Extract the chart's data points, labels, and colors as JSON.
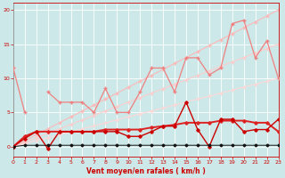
{
  "x": [
    0,
    1,
    2,
    3,
    4,
    5,
    6,
    7,
    8,
    9,
    10,
    11,
    12,
    13,
    14,
    15,
    16,
    17,
    18,
    19,
    20,
    21,
    22,
    23
  ],
  "line_pink_jagged": [
    11.5,
    5.0,
    null,
    8.0,
    6.5,
    6.5,
    6.5,
    5.0,
    8.5,
    5.0,
    5.0,
    8.0,
    11.5,
    11.5,
    8.0,
    13.0,
    13.0,
    10.5,
    11.5,
    18.0,
    18.5,
    13.0,
    15.5,
    10.0
  ],
  "line_pale_upper": [
    0.0,
    0.87,
    1.74,
    2.61,
    3.48,
    4.35,
    5.22,
    6.09,
    6.96,
    7.83,
    8.7,
    9.57,
    10.43,
    11.3,
    12.17,
    13.04,
    13.91,
    14.78,
    15.65,
    16.52,
    17.39,
    18.26,
    19.13,
    20.0
  ],
  "line_pale_lower": [
    0.0,
    0.65,
    1.3,
    1.96,
    2.61,
    3.26,
    3.91,
    4.57,
    5.22,
    5.87,
    6.52,
    7.17,
    7.83,
    8.48,
    9.13,
    9.78,
    10.43,
    11.09,
    11.74,
    12.39,
    13.04,
    13.7,
    14.35,
    15.0
  ],
  "line_very_pale_flat": [
    0.0,
    0.43,
    0.87,
    1.3,
    1.74,
    2.17,
    2.61,
    3.04,
    3.48,
    3.91,
    4.35,
    4.78,
    5.22,
    5.65,
    6.09,
    6.52,
    6.96,
    7.39,
    7.83,
    8.26,
    8.7,
    9.13,
    9.57,
    10.0
  ],
  "line_dark_red_jagged": [
    0.0,
    1.2,
    2.2,
    -0.3,
    2.2,
    2.2,
    2.2,
    2.2,
    2.2,
    2.2,
    1.5,
    1.5,
    2.2,
    3.0,
    3.0,
    6.5,
    2.5,
    0.0,
    4.0,
    4.0,
    2.2,
    2.5,
    2.5,
    4.0
  ],
  "line_dark_red_flat": [
    0.0,
    1.5,
    2.2,
    2.2,
    2.2,
    2.2,
    2.2,
    2.2,
    2.5,
    2.5,
    2.5,
    2.5,
    2.8,
    3.0,
    3.2,
    3.5,
    3.5,
    3.5,
    3.8,
    3.8,
    3.8,
    3.5,
    3.5,
    2.2
  ],
  "line_black": [
    0.0,
    0.2,
    0.2,
    0.2,
    0.2,
    0.2,
    0.2,
    0.2,
    0.2,
    0.2,
    0.2,
    0.2,
    0.2,
    0.2,
    0.2,
    0.2,
    0.2,
    0.2,
    0.2,
    0.2,
    0.2,
    0.2,
    0.2,
    0.2
  ],
  "bg_color": "#cce8e8",
  "grid_color": "#ffffff",
  "color_pink_jagged": "#f08080",
  "color_pale_upper": "#ffb8b8",
  "color_pale_lower": "#ffcccc",
  "color_very_pale": "#ffd8d8",
  "color_dark_red_jagged": "#cc0000",
  "color_dark_red_flat": "#dd2222",
  "color_black": "#111111",
  "xlabel": "Vent moyen/en rafales ( km/h )",
  "xlim": [
    0,
    23
  ],
  "ylim": [
    -1.5,
    21
  ],
  "yticks": [
    0,
    5,
    10,
    15,
    20
  ],
  "xticks": [
    0,
    1,
    2,
    3,
    4,
    5,
    6,
    7,
    8,
    9,
    10,
    11,
    12,
    13,
    14,
    15,
    16,
    17,
    18,
    19,
    20,
    21,
    22,
    23
  ]
}
